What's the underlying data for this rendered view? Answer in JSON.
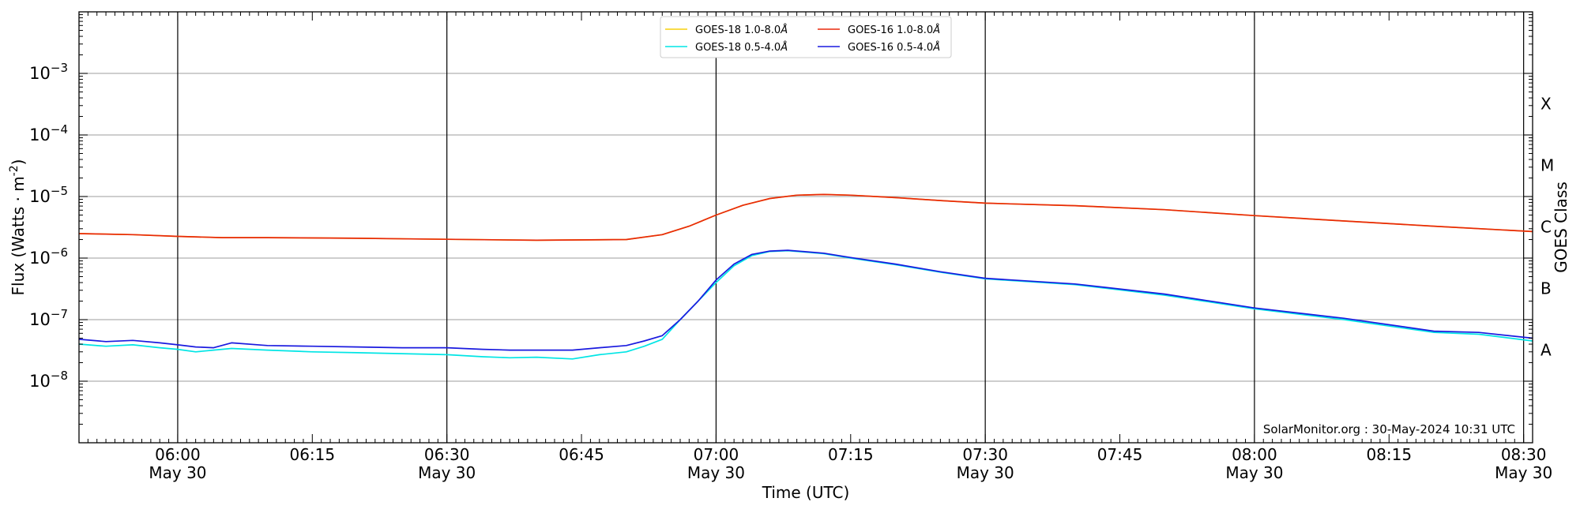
{
  "chart_data": {
    "type": "line",
    "ylabel": "Flux (Watts · m",
    "ylabel_sup": "-2",
    "ylabel_close": ")",
    "xlabel": "Time (UTC)",
    "right_label": "GOES Class",
    "y_scale": "log",
    "ylim": [
      1e-09,
      0.01
    ],
    "xlim": [
      "05:49",
      "08:31"
    ],
    "grid_y": true,
    "legend_position": "top-center",
    "y_ticks": [
      {
        "value": 1e-08,
        "base": "10",
        "exp": "−8"
      },
      {
        "value": 1e-07,
        "base": "10",
        "exp": "−7"
      },
      {
        "value": 1e-06,
        "base": "10",
        "exp": "−6"
      },
      {
        "value": 1e-05,
        "base": "10",
        "exp": "−5"
      },
      {
        "value": 0.0001,
        "base": "10",
        "exp": "−4"
      },
      {
        "value": 0.001,
        "base": "10",
        "exp": "−3"
      }
    ],
    "x_ticks": [
      {
        "time": "06:00",
        "label": "06:00",
        "date": "May 30"
      },
      {
        "time": "06:15",
        "label": "06:15",
        "date": ""
      },
      {
        "time": "06:30",
        "label": "06:30",
        "date": "May 30"
      },
      {
        "time": "06:45",
        "label": "06:45",
        "date": ""
      },
      {
        "time": "07:00",
        "label": "07:00",
        "date": "May 30"
      },
      {
        "time": "07:15",
        "label": "07:15",
        "date": ""
      },
      {
        "time": "07:30",
        "label": "07:30",
        "date": "May 30"
      },
      {
        "time": "07:45",
        "label": "07:45",
        "date": ""
      },
      {
        "time": "08:00",
        "label": "08:00",
        "date": "May 30"
      },
      {
        "time": "08:15",
        "label": "08:15",
        "date": ""
      },
      {
        "time": "08:30",
        "label": "08:30",
        "date": "May 30"
      }
    ],
    "vertical_lines": [
      "06:00",
      "06:30",
      "07:00",
      "07:30",
      "08:00",
      "08:30"
    ],
    "goes_classes": [
      {
        "label": "A",
        "value": 3.2e-08
      },
      {
        "label": "B",
        "value": 3.2e-07
      },
      {
        "label": "C",
        "value": 3.2e-06
      },
      {
        "label": "M",
        "value": 3.2e-05
      },
      {
        "label": "X",
        "value": 0.00032
      }
    ],
    "annotation": "SolarMonitor.org : 30-May-2024 10:31 UTC",
    "series": [
      {
        "name": "GOES-18 1.0-8.0",
        "name_suffix": "Å",
        "color": "#f7d10d",
        "points": [
          [
            "05:49",
            2.5e-06
          ],
          [
            "05:55",
            2.4e-06
          ],
          [
            "06:00",
            2.25e-06
          ],
          [
            "06:05",
            2.15e-06
          ],
          [
            "06:10",
            2.15e-06
          ],
          [
            "06:20",
            2.1e-06
          ],
          [
            "06:30",
            2.02e-06
          ],
          [
            "06:40",
            1.95e-06
          ],
          [
            "06:50",
            2e-06
          ],
          [
            "06:54",
            2.4e-06
          ],
          [
            "06:57",
            3.3e-06
          ],
          [
            "07:00",
            5e-06
          ],
          [
            "07:03",
            7.2e-06
          ],
          [
            "07:06",
            9.3e-06
          ],
          [
            "07:09",
            1.05e-05
          ],
          [
            "07:12",
            1.08e-05
          ],
          [
            "07:15",
            1.05e-05
          ],
          [
            "07:20",
            9.6e-06
          ],
          [
            "07:25",
            8.6e-06
          ],
          [
            "07:30",
            7.8e-06
          ],
          [
            "07:40",
            7.1e-06
          ],
          [
            "07:50",
            6.1e-06
          ],
          [
            "08:00",
            4.9e-06
          ],
          [
            "08:10",
            4e-06
          ],
          [
            "08:20",
            3.3e-06
          ],
          [
            "08:31",
            2.7e-06
          ]
        ]
      },
      {
        "name": "GOES-18 0.5-4.0",
        "name_suffix": "Å",
        "color": "#00e5e5",
        "points": [
          [
            "05:49",
            4e-08
          ],
          [
            "05:52",
            3.7e-08
          ],
          [
            "05:55",
            3.9e-08
          ],
          [
            "05:58",
            3.5e-08
          ],
          [
            "06:00",
            3.3e-08
          ],
          [
            "06:02",
            3e-08
          ],
          [
            "06:04",
            3.2e-08
          ],
          [
            "06:06",
            3.4e-08
          ],
          [
            "06:10",
            3.2e-08
          ],
          [
            "06:15",
            3e-08
          ],
          [
            "06:20",
            2.9e-08
          ],
          [
            "06:25",
            2.8e-08
          ],
          [
            "06:30",
            2.7e-08
          ],
          [
            "06:34",
            2.5e-08
          ],
          [
            "06:37",
            2.4e-08
          ],
          [
            "06:40",
            2.45e-08
          ],
          [
            "06:44",
            2.3e-08
          ],
          [
            "06:47",
            2.7e-08
          ],
          [
            "06:50",
            3e-08
          ],
          [
            "06:52",
            3.7e-08
          ],
          [
            "06:54",
            4.8e-08
          ],
          [
            "06:56",
            1e-07
          ],
          [
            "06:58",
            2e-07
          ],
          [
            "07:00",
            4e-07
          ],
          [
            "07:02",
            7.5e-07
          ],
          [
            "07:04",
            1.1e-06
          ],
          [
            "07:06",
            1.28e-06
          ],
          [
            "07:08",
            1.32e-06
          ],
          [
            "07:12",
            1.18e-06
          ],
          [
            "07:15",
            1e-06
          ],
          [
            "07:20",
            7.8e-07
          ],
          [
            "07:25",
            5.9e-07
          ],
          [
            "07:30",
            4.6e-07
          ],
          [
            "07:40",
            3.7e-07
          ],
          [
            "07:50",
            2.5e-07
          ],
          [
            "08:00",
            1.5e-07
          ],
          [
            "08:10",
            1e-07
          ],
          [
            "08:20",
            6.2e-08
          ],
          [
            "08:25",
            5.8e-08
          ],
          [
            "08:31",
            4.5e-08
          ]
        ]
      },
      {
        "name": "GOES-16 1.0-8.0",
        "name_suffix": "Å",
        "color": "#e8290b",
        "points": [
          [
            "05:49",
            2.5e-06
          ],
          [
            "05:55",
            2.4e-06
          ],
          [
            "06:00",
            2.25e-06
          ],
          [
            "06:05",
            2.15e-06
          ],
          [
            "06:10",
            2.15e-06
          ],
          [
            "06:20",
            2.1e-06
          ],
          [
            "06:30",
            2.02e-06
          ],
          [
            "06:40",
            1.95e-06
          ],
          [
            "06:50",
            2e-06
          ],
          [
            "06:54",
            2.4e-06
          ],
          [
            "06:57",
            3.3e-06
          ],
          [
            "07:00",
            5e-06
          ],
          [
            "07:03",
            7.2e-06
          ],
          [
            "07:06",
            9.3e-06
          ],
          [
            "07:09",
            1.05e-05
          ],
          [
            "07:12",
            1.08e-05
          ],
          [
            "07:15",
            1.05e-05
          ],
          [
            "07:20",
            9.6e-06
          ],
          [
            "07:25",
            8.6e-06
          ],
          [
            "07:30",
            7.8e-06
          ],
          [
            "07:40",
            7.1e-06
          ],
          [
            "07:50",
            6.1e-06
          ],
          [
            "08:00",
            4.9e-06
          ],
          [
            "08:10",
            4e-06
          ],
          [
            "08:20",
            3.3e-06
          ],
          [
            "08:31",
            2.7e-06
          ]
        ]
      },
      {
        "name": "GOES-16 0.5-4.0",
        "name_suffix": "Å",
        "color": "#1a1adf",
        "points": [
          [
            "05:49",
            4.8e-08
          ],
          [
            "05:52",
            4.4e-08
          ],
          [
            "05:55",
            4.6e-08
          ],
          [
            "05:58",
            4.2e-08
          ],
          [
            "06:00",
            3.9e-08
          ],
          [
            "06:02",
            3.6e-08
          ],
          [
            "06:04",
            3.5e-08
          ],
          [
            "06:06",
            4.2e-08
          ],
          [
            "06:10",
            3.8e-08
          ],
          [
            "06:15",
            3.7e-08
          ],
          [
            "06:20",
            3.6e-08
          ],
          [
            "06:25",
            3.5e-08
          ],
          [
            "06:30",
            3.5e-08
          ],
          [
            "06:34",
            3.3e-08
          ],
          [
            "06:37",
            3.2e-08
          ],
          [
            "06:40",
            3.2e-08
          ],
          [
            "06:44",
            3.2e-08
          ],
          [
            "06:47",
            3.5e-08
          ],
          [
            "06:50",
            3.8e-08
          ],
          [
            "06:52",
            4.5e-08
          ],
          [
            "06:54",
            5.5e-08
          ],
          [
            "06:56",
            1e-07
          ],
          [
            "06:58",
            2e-07
          ],
          [
            "07:00",
            4.4e-07
          ],
          [
            "07:02",
            8e-07
          ],
          [
            "07:04",
            1.15e-06
          ],
          [
            "07:06",
            1.3e-06
          ],
          [
            "07:08",
            1.34e-06
          ],
          [
            "07:12",
            1.2e-06
          ],
          [
            "07:15",
            1.02e-06
          ],
          [
            "07:20",
            8e-07
          ],
          [
            "07:25",
            6e-07
          ],
          [
            "07:30",
            4.7e-07
          ],
          [
            "07:40",
            3.8e-07
          ],
          [
            "07:50",
            2.6e-07
          ],
          [
            "08:00",
            1.55e-07
          ],
          [
            "08:10",
            1.05e-07
          ],
          [
            "08:20",
            6.5e-08
          ],
          [
            "08:25",
            6.2e-08
          ],
          [
            "08:31",
            5e-08
          ]
        ]
      }
    ],
    "legend_order": [
      0,
      1,
      2,
      3
    ]
  }
}
